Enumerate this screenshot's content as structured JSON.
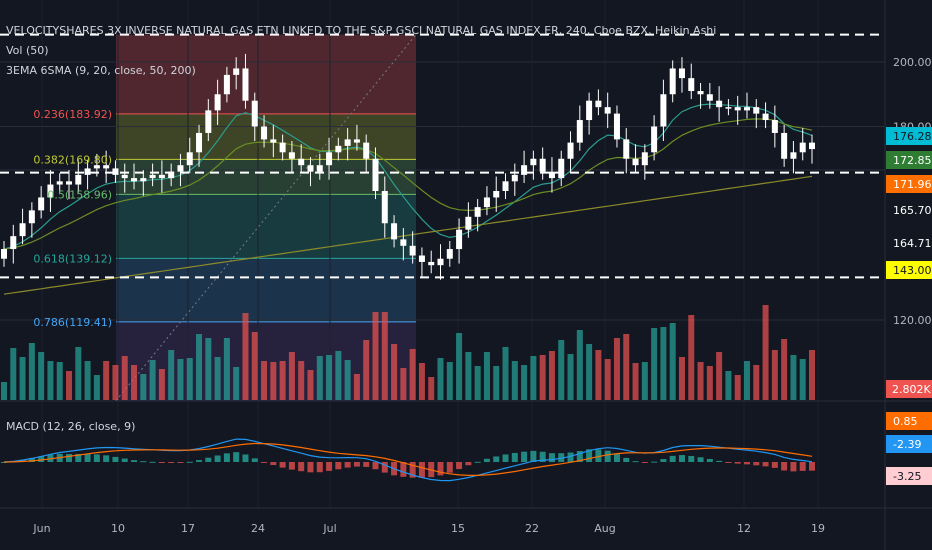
{
  "header": {
    "symbol_line": "VELOCITYSHARES 3X INVERSE NATURAL GAS ETN LINKED TO THE S&P GSCI NATURAL GAS INDEX ER, 240, Cboe BZX, Heikin Ashi",
    "vol_line": "Vol (50)",
    "ma_line": "3EMA 6SMA (9, 20, close, 50, 200)"
  },
  "macd_title": "MACD (12, 26, close, 9)",
  "colors": {
    "background": "#131722",
    "up_candle": "#ffffff",
    "down_candle": "#ffffff",
    "volume_up": "#26a69a",
    "volume_down": "#ef5350",
    "ema_fast": "#2a9d8f",
    "ema_slow": "#6b8e23",
    "sma_long": "#8b8b2a",
    "macd_line": "#2196f3",
    "signal_line": "#ff6d00",
    "hist_pos": "#b2dfdb",
    "hist_neg": "#ef9a9a"
  },
  "chart_data": [
    {
      "type": "candlestick",
      "title": "VELOCITYSHARES 3X INVERSE NATURAL GAS ETN LINKED TO THE S&P GSCI NATURAL GAS INDEX ER, 240, Cboe BZX, Heikin Ashi",
      "x_ticks": [
        "Jun",
        "10",
        "17",
        "24",
        "Jul",
        "15",
        "22",
        "Aug",
        "12",
        "19"
      ],
      "y_ticks": [
        "200.00",
        "180.00",
        "120.00"
      ],
      "price_labels": [
        {
          "value": 176.28,
          "text": "176.28",
          "color": "#00bcd4"
        },
        {
          "value": 172.85,
          "text": "172.85",
          "color": "#2e7d32"
        },
        {
          "value": 171.96,
          "text": "171.96",
          "color": "#ff6f00"
        },
        {
          "value": 165.7,
          "text": "165.70",
          "color": "#131722"
        },
        {
          "value": 164.71,
          "text": "164.71",
          "color": "#131722"
        },
        {
          "value": 143.0,
          "text": "143.00",
          "color": "#ffff00"
        }
      ],
      "volume_label": "2.802K",
      "horizontal_lines": [
        208.5,
        165.7,
        133.2
      ],
      "fibonacci_levels": [
        {
          "ratio": "0.236",
          "value": 183.92,
          "label": "0.236(183.92)",
          "color": "#ef5350"
        },
        {
          "ratio": "0.382",
          "value": 169.8,
          "label": "0.382(169.80)",
          "color": "#c0ca33"
        },
        {
          "ratio": "0.5",
          "value": 158.96,
          "label": "0.5(158.96)",
          "color": "#66bb6a"
        },
        {
          "ratio": "0.618",
          "value": 139.12,
          "label": "0.618(139.12)",
          "color": "#26a69a"
        },
        {
          "ratio": "0.786",
          "value": 119.41,
          "label": "0.786(119.41)",
          "color": "#42a5f5"
        }
      ],
      "close_series": [
        142,
        146,
        150,
        154,
        158,
        162,
        163,
        162,
        165,
        167,
        168,
        167,
        165,
        164,
        163,
        164,
        165,
        164,
        166,
        168,
        172,
        178,
        185,
        190,
        196,
        198,
        188,
        180,
        176,
        175,
        172,
        170,
        168,
        166,
        168,
        172,
        174,
        176,
        175,
        170,
        160,
        150,
        145,
        143,
        140,
        138,
        137,
        139,
        142,
        148,
        152,
        155,
        158,
        160,
        163,
        165,
        168,
        170,
        166,
        164,
        170,
        175,
        182,
        188,
        186,
        184,
        176,
        170,
        168,
        172,
        180,
        190,
        198,
        195,
        191,
        190,
        188,
        186,
        186,
        185,
        186,
        184,
        182,
        178,
        170,
        172,
        175,
        173
      ]
    },
    {
      "type": "macd",
      "title": "MACD (12, 26, close, 9)",
      "values": {
        "signal": "0.85",
        "macd": "-2.39",
        "histogram": "-3.25"
      },
      "value_colors": {
        "signal": "#ff6d00",
        "macd": "#2196f3",
        "histogram": "#ffcdd2"
      }
    }
  ]
}
